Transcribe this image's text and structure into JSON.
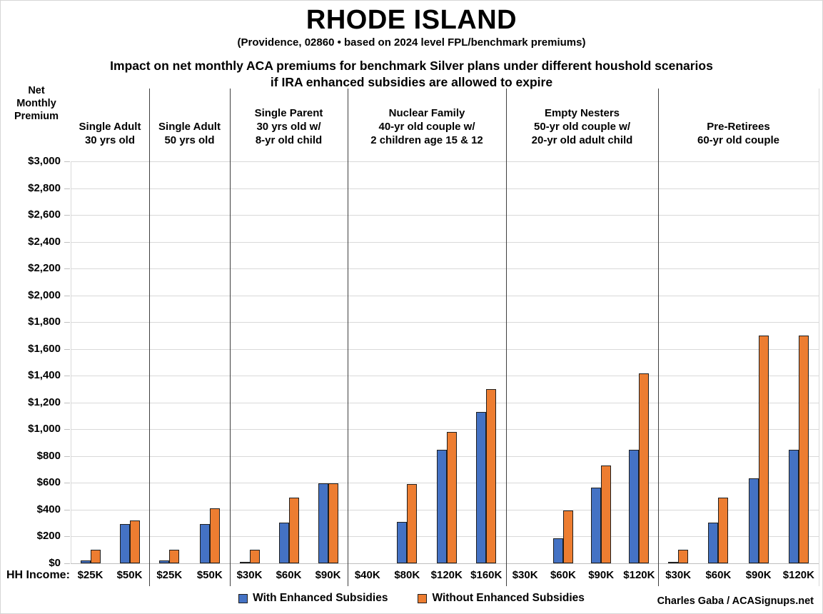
{
  "header": {
    "title": "RHODE ISLAND",
    "subtitle": "(Providence, 02860 • based on 2024 level FPL/benchmark premiums)",
    "heading_line1": "Impact on net monthly ACA premiums for benchmark Silver plans under different houshold scenarios",
    "heading_line2": "if IRA enhanced subsidies are allowed to expire"
  },
  "y_axis": {
    "title_lines": [
      "Net",
      "Monthly",
      "Premium"
    ],
    "tick_labels": [
      "$3,000",
      "$2,800",
      "$2,600",
      "$2,400",
      "$2,200",
      "$2,000",
      "$1,800",
      "$1,600",
      "$1,400",
      "$1,200",
      "$1,000",
      "$800",
      "$600",
      "$400",
      "$200",
      "$0"
    ]
  },
  "x_axis": {
    "prefix_label": "HH Income:"
  },
  "legend": {
    "items": [
      {
        "label": "With Enhanced Subsidies",
        "color": "#4472C4"
      },
      {
        "label": "Without Enhanced Subsidies",
        "color": "#ED7D31"
      }
    ]
  },
  "credit": "Charles Gaba / ACASignups.net",
  "colors": {
    "with_subsidies": "#4472C4",
    "without_subsidies": "#ED7D31",
    "gridline": "#d9d9d9",
    "separator": "#404040"
  },
  "chart_data": {
    "type": "bar",
    "title": "Impact on net monthly ACA premiums for benchmark Silver plans under different houshold scenarios if IRA enhanced subsidies are allowed to expire",
    "xlabel": "HH Income",
    "ylabel": "Net Monthly Premium",
    "ylim": [
      0,
      3000
    ],
    "ytick_step": 200,
    "grid": true,
    "legend_position": "bottom",
    "series_names": [
      "With Enhanced Subsidies",
      "Without Enhanced Subsidies"
    ],
    "series_colors": [
      "#4472C4",
      "#ED7D31"
    ],
    "groups": [
      {
        "label": "Single Adult 30 yrs old",
        "label_lines": [
          "Single Adult",
          "30 yrs old"
        ],
        "categories": [
          "$25K",
          "$50K"
        ],
        "series": [
          {
            "name": "With Enhanced Subsidies",
            "values": [
              20,
              295
            ]
          },
          {
            "name": "Without Enhanced Subsidies",
            "values": [
              100,
              320
            ]
          }
        ]
      },
      {
        "label": "Single Adult 50 yrs old",
        "label_lines": [
          "Single Adult",
          "50 yrs old"
        ],
        "categories": [
          "$25K",
          "$50K"
        ],
        "series": [
          {
            "name": "With Enhanced Subsidies",
            "values": [
              20,
              295
            ]
          },
          {
            "name": "Without Enhanced Subsidies",
            "values": [
              100,
              410
            ]
          }
        ]
      },
      {
        "label": "Single Parent 30 yrs old w/ 8-yr old child",
        "label_lines": [
          "Single Parent",
          "30 yrs old w/",
          "8-yr old child"
        ],
        "categories": [
          "$30K",
          "$60K",
          "$90K"
        ],
        "series": [
          {
            "name": "With Enhanced Subsidies",
            "values": [
              5,
              305,
              595
            ]
          },
          {
            "name": "Without Enhanced Subsidies",
            "values": [
              100,
              490,
              595
            ]
          }
        ]
      },
      {
        "label": "Nuclear Family 40-yr old couple w/ 2 children age 15 & 12",
        "label_lines": [
          "Nuclear Family",
          "40-yr old couple w/",
          "2 children age 15 & 12"
        ],
        "categories": [
          "$40K",
          "$80K",
          "$120K",
          "$160K"
        ],
        "series": [
          {
            "name": "With Enhanced Subsidies",
            "values": [
              0,
              310,
              850,
              1130
            ]
          },
          {
            "name": "Without Enhanced Subsidies",
            "values": [
              0,
              590,
              980,
              1300
            ]
          }
        ]
      },
      {
        "label": "Empty Nesters 50-yr old couple w/ 20-yr old adult child",
        "label_lines": [
          "Empty Nesters",
          "50-yr old couple w/",
          "20-yr old adult child"
        ],
        "categories": [
          "$30K",
          "$60K",
          "$90K",
          "$120K"
        ],
        "series": [
          {
            "name": "With Enhanced Subsidies",
            "values": [
              0,
              185,
              565,
              850
            ]
          },
          {
            "name": "Without Enhanced Subsidies",
            "values": [
              0,
              395,
              730,
              1420
            ]
          }
        ]
      },
      {
        "label": "Pre-Retirees 60-yr old couple",
        "label_lines": [
          "Pre-Retirees",
          "60-yr old couple"
        ],
        "categories": [
          "$30K",
          "$60K",
          "$90K",
          "$120K"
        ],
        "series": [
          {
            "name": "With Enhanced Subsidies",
            "values": [
              5,
              305,
              635,
              850
            ]
          },
          {
            "name": "Without Enhanced Subsidies",
            "values": [
              100,
              490,
              1700,
              1700
            ]
          }
        ]
      }
    ]
  }
}
